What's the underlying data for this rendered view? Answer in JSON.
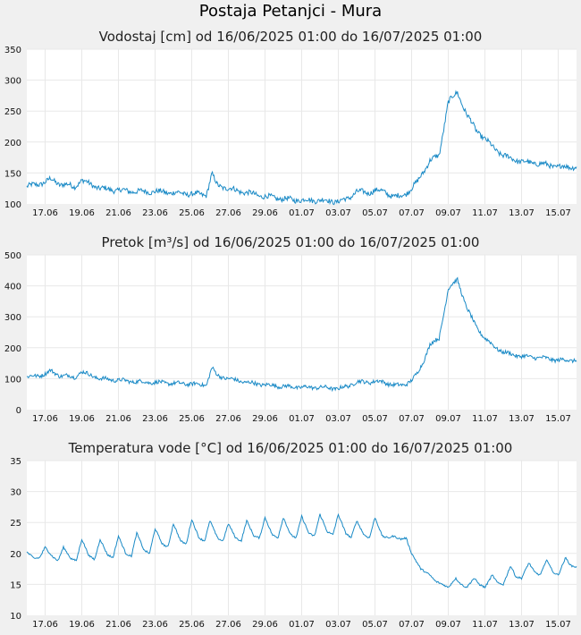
{
  "page": {
    "title": "Postaja Petanjci - Mura"
  },
  "chart_data": [
    {
      "type": "line",
      "title": "Vodostaj [cm] od 16/06/2025 01:00 do 16/07/2025 01:00",
      "ylim": [
        100,
        350
      ],
      "yticks": [
        100,
        150,
        200,
        250,
        300,
        350
      ],
      "xticks": [
        "17.06",
        "19.06",
        "21.06",
        "23.06",
        "25.06",
        "27.06",
        "29.06",
        "01.07",
        "03.07",
        "05.07",
        "07.07",
        "09.07",
        "11.07",
        "13.07",
        "15.07"
      ],
      "xlim_days": [
        0,
        30
      ],
      "color": "#1a8ac6",
      "grid": true,
      "noise": 4,
      "diurnal": 2,
      "series": [
        {
          "x": [
            0,
            0.6,
            1,
            1.3,
            1.8,
            2.3,
            2.6,
            3,
            4,
            5,
            6,
            7,
            8,
            9,
            9.8,
            10.1,
            10.4,
            11,
            12,
            13,
            14,
            15,
            16,
            17,
            17.5,
            18,
            18.6,
            19,
            19.5,
            20,
            20.3,
            20.6,
            21,
            21.3,
            21.6,
            22,
            22.5,
            23,
            23.5,
            24,
            24.5,
            25,
            25.5,
            26,
            27,
            28,
            29,
            30
          ],
          "y": [
            128,
            132,
            135,
            140,
            132,
            130,
            128,
            138,
            125,
            122,
            120,
            120,
            118,
            116,
            115,
            148,
            130,
            125,
            118,
            112,
            108,
            106,
            106,
            104,
            108,
            120,
            118,
            122,
            120,
            112,
            112,
            115,
            125,
            135,
            150,
            170,
            178,
            265,
            280,
            245,
            220,
            205,
            190,
            178,
            168,
            165,
            160,
            160
          ]
        }
      ]
    },
    {
      "type": "line",
      "title": "Pretok [m³/s] od 16/06/2025 01:00 do 16/07/2025 01:00",
      "ylim": [
        0,
        500
      ],
      "yticks": [
        0,
        100,
        200,
        300,
        400,
        500
      ],
      "xticks": [
        "17.06",
        "19.06",
        "21.06",
        "23.06",
        "25.06",
        "27.06",
        "29.06",
        "01.07",
        "03.07",
        "05.07",
        "07.07",
        "09.07",
        "11.07",
        "13.07",
        "15.07"
      ],
      "xlim_days": [
        0,
        30
      ],
      "color": "#1a8ac6",
      "grid": true,
      "noise": 6,
      "diurnal": 3,
      "series": [
        {
          "x": [
            0,
            0.6,
            1,
            1.3,
            1.8,
            2.3,
            2.6,
            3,
            4,
            5,
            6,
            7,
            8,
            9,
            9.8,
            10.1,
            10.4,
            11,
            12,
            13,
            14,
            15,
            16,
            17,
            17.5,
            18,
            18.6,
            19,
            19.5,
            20,
            20.3,
            20.6,
            21,
            21.3,
            21.6,
            22,
            22.5,
            23,
            23.5,
            24,
            24.5,
            25,
            25.5,
            26,
            27,
            28,
            29,
            30
          ],
          "y": [
            105,
            110,
            115,
            125,
            110,
            108,
            105,
            122,
            100,
            95,
            90,
            88,
            85,
            83,
            80,
            135,
            110,
            100,
            88,
            80,
            75,
            72,
            72,
            68,
            75,
            90,
            88,
            92,
            88,
            80,
            78,
            80,
            95,
            115,
            150,
            210,
            230,
            390,
            420,
            330,
            270,
            230,
            205,
            185,
            172,
            168,
            160,
            160
          ]
        }
      ]
    },
    {
      "type": "line",
      "title": "Temperatura vode [°C] od 16/06/2025 01:00 do 16/07/2025 01:00",
      "ylim": [
        10,
        35
      ],
      "yticks": [
        10,
        15,
        20,
        25,
        30,
        35
      ],
      "xticks": [
        "17.06",
        "19.06",
        "21.06",
        "23.06",
        "25.06",
        "27.06",
        "29.06",
        "01.07",
        "03.07",
        "05.07",
        "07.07",
        "09.07",
        "11.07",
        "13.07",
        "15.07"
      ],
      "xlim_days": [
        0,
        30
      ],
      "color": "#1a8ac6",
      "grid": true,
      "noise": 0.15,
      "diurnal": 0,
      "series": [
        {
          "x": [
            0,
            0.4,
            0.7,
            1,
            1.4,
            1.7,
            2,
            2.4,
            2.7,
            3,
            3.4,
            3.7,
            4,
            4.4,
            4.7,
            5,
            5.4,
            5.7,
            6,
            6.4,
            6.7,
            7,
            7.4,
            7.7,
            8,
            8.4,
            8.7,
            9,
            9.4,
            9.7,
            10,
            10.4,
            10.7,
            11,
            11.4,
            11.7,
            12,
            12.4,
            12.7,
            13,
            13.4,
            13.7,
            14,
            14.4,
            14.7,
            15,
            15.4,
            15.7,
            16,
            16.4,
            16.7,
            17,
            17.4,
            17.7,
            18,
            18.4,
            18.7,
            19,
            19.4,
            19.7,
            20,
            20.4,
            20.7,
            21,
            21.5,
            22,
            22.3,
            22.7,
            23,
            23.4,
            23.7,
            24,
            24.4,
            24.7,
            25,
            25.4,
            25.7,
            26,
            26.4,
            26.7,
            27,
            27.4,
            27.7,
            28,
            28.4,
            28.7,
            29,
            29.4,
            29.7,
            30
          ],
          "y": [
            20.2,
            19.2,
            19.3,
            21.0,
            19.5,
            18.8,
            21.0,
            19.2,
            18.8,
            22.3,
            19.6,
            19.0,
            22.3,
            19.8,
            19.3,
            22.8,
            20.0,
            19.5,
            23.3,
            20.5,
            20.0,
            24.0,
            21.5,
            21.0,
            24.8,
            22.0,
            21.5,
            25.5,
            22.5,
            22.0,
            25.3,
            22.5,
            22.0,
            24.8,
            22.5,
            22.0,
            25.3,
            22.8,
            22.5,
            25.8,
            23.0,
            22.5,
            25.8,
            23.0,
            22.5,
            26.0,
            23.2,
            22.8,
            26.3,
            23.5,
            23.0,
            26.3,
            23.3,
            22.5,
            25.3,
            23.0,
            22.5,
            25.8,
            22.8,
            22.5,
            22.8,
            22.3,
            22.5,
            20.0,
            17.5,
            16.5,
            15.5,
            15.0,
            14.5,
            16.0,
            15.0,
            14.5,
            16.0,
            15.0,
            14.5,
            16.5,
            15.2,
            15.0,
            18.0,
            16.2,
            16.0,
            18.5,
            17.0,
            16.5,
            19.0,
            17.0,
            16.5,
            19.3,
            18.0,
            17.8
          ]
        }
      ]
    }
  ]
}
